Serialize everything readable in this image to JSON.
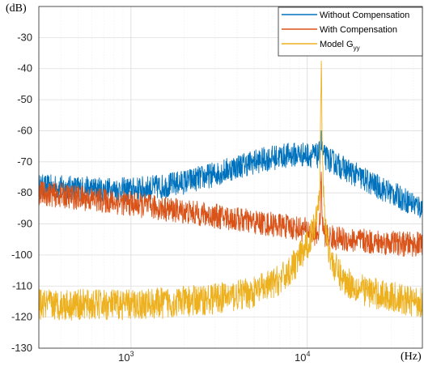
{
  "chart_data": {
    "type": "line",
    "title": "",
    "xlabel": "(Hz)",
    "ylabel": "(dB)",
    "x_scale": "log",
    "xlim": [
      300,
      45000
    ],
    "ylim": [
      -130,
      -20
    ],
    "grid": true,
    "minor_grid": true,
    "legend_position": "top-right",
    "x_ticks": [
      {
        "value": 1000,
        "base": "10",
        "exp": "3"
      },
      {
        "value": 10000,
        "base": "10",
        "exp": "4"
      }
    ],
    "y_ticks": [
      -30,
      -40,
      -50,
      -60,
      -70,
      -80,
      -90,
      -100,
      -110,
      -120,
      -130
    ],
    "x": [
      300,
      500,
      700,
      1000,
      1500,
      2000,
      3000,
      4000,
      5000,
      6000,
      7000,
      8000,
      9000,
      10000,
      11000,
      11500,
      11800,
      12000,
      12200,
      12500,
      13000,
      14000,
      16000,
      20000,
      25000,
      30000,
      35000,
      40000,
      45000
    ],
    "series": [
      {
        "name": "Without Compensation",
        "color": "#0072BD",
        "noise_amplitude": 4,
        "values": [
          -78,
          -78.5,
          -79,
          -79,
          -78,
          -76.5,
          -74,
          -71.5,
          -70,
          -69,
          -68.3,
          -67.8,
          -67.6,
          -67.7,
          -68,
          -68.2,
          -67,
          -63,
          -67,
          -68.5,
          -69,
          -70,
          -72,
          -75,
          -78,
          -80,
          -82,
          -83.5,
          -85
        ]
      },
      {
        "name": "With Compensation",
        "color": "#D95319",
        "noise_amplitude": 4,
        "values": [
          -80,
          -81.5,
          -82.5,
          -83.5,
          -85,
          -86,
          -87.5,
          -88.5,
          -89.5,
          -90,
          -90.5,
          -91,
          -91.5,
          -92,
          -93,
          -93,
          -90,
          -75,
          -90,
          -93,
          -94,
          -94.5,
          -95,
          -95.5,
          -96,
          -96,
          -96.5,
          -96.5,
          -96.5
        ]
      },
      {
        "name": "Model G",
        "name_sub": "yy",
        "color": "#EDB120",
        "noise_amplitude": 5,
        "values": [
          -116,
          -116,
          -116,
          -116,
          -115.5,
          -115,
          -114,
          -113,
          -112,
          -110,
          -108,
          -105,
          -101,
          -97,
          -90,
          -84,
          -75,
          -38,
          -70,
          -86,
          -96,
          -103,
          -108,
          -111,
          -112.5,
          -113.5,
          -114.5,
          -115,
          -115
        ]
      }
    ]
  }
}
